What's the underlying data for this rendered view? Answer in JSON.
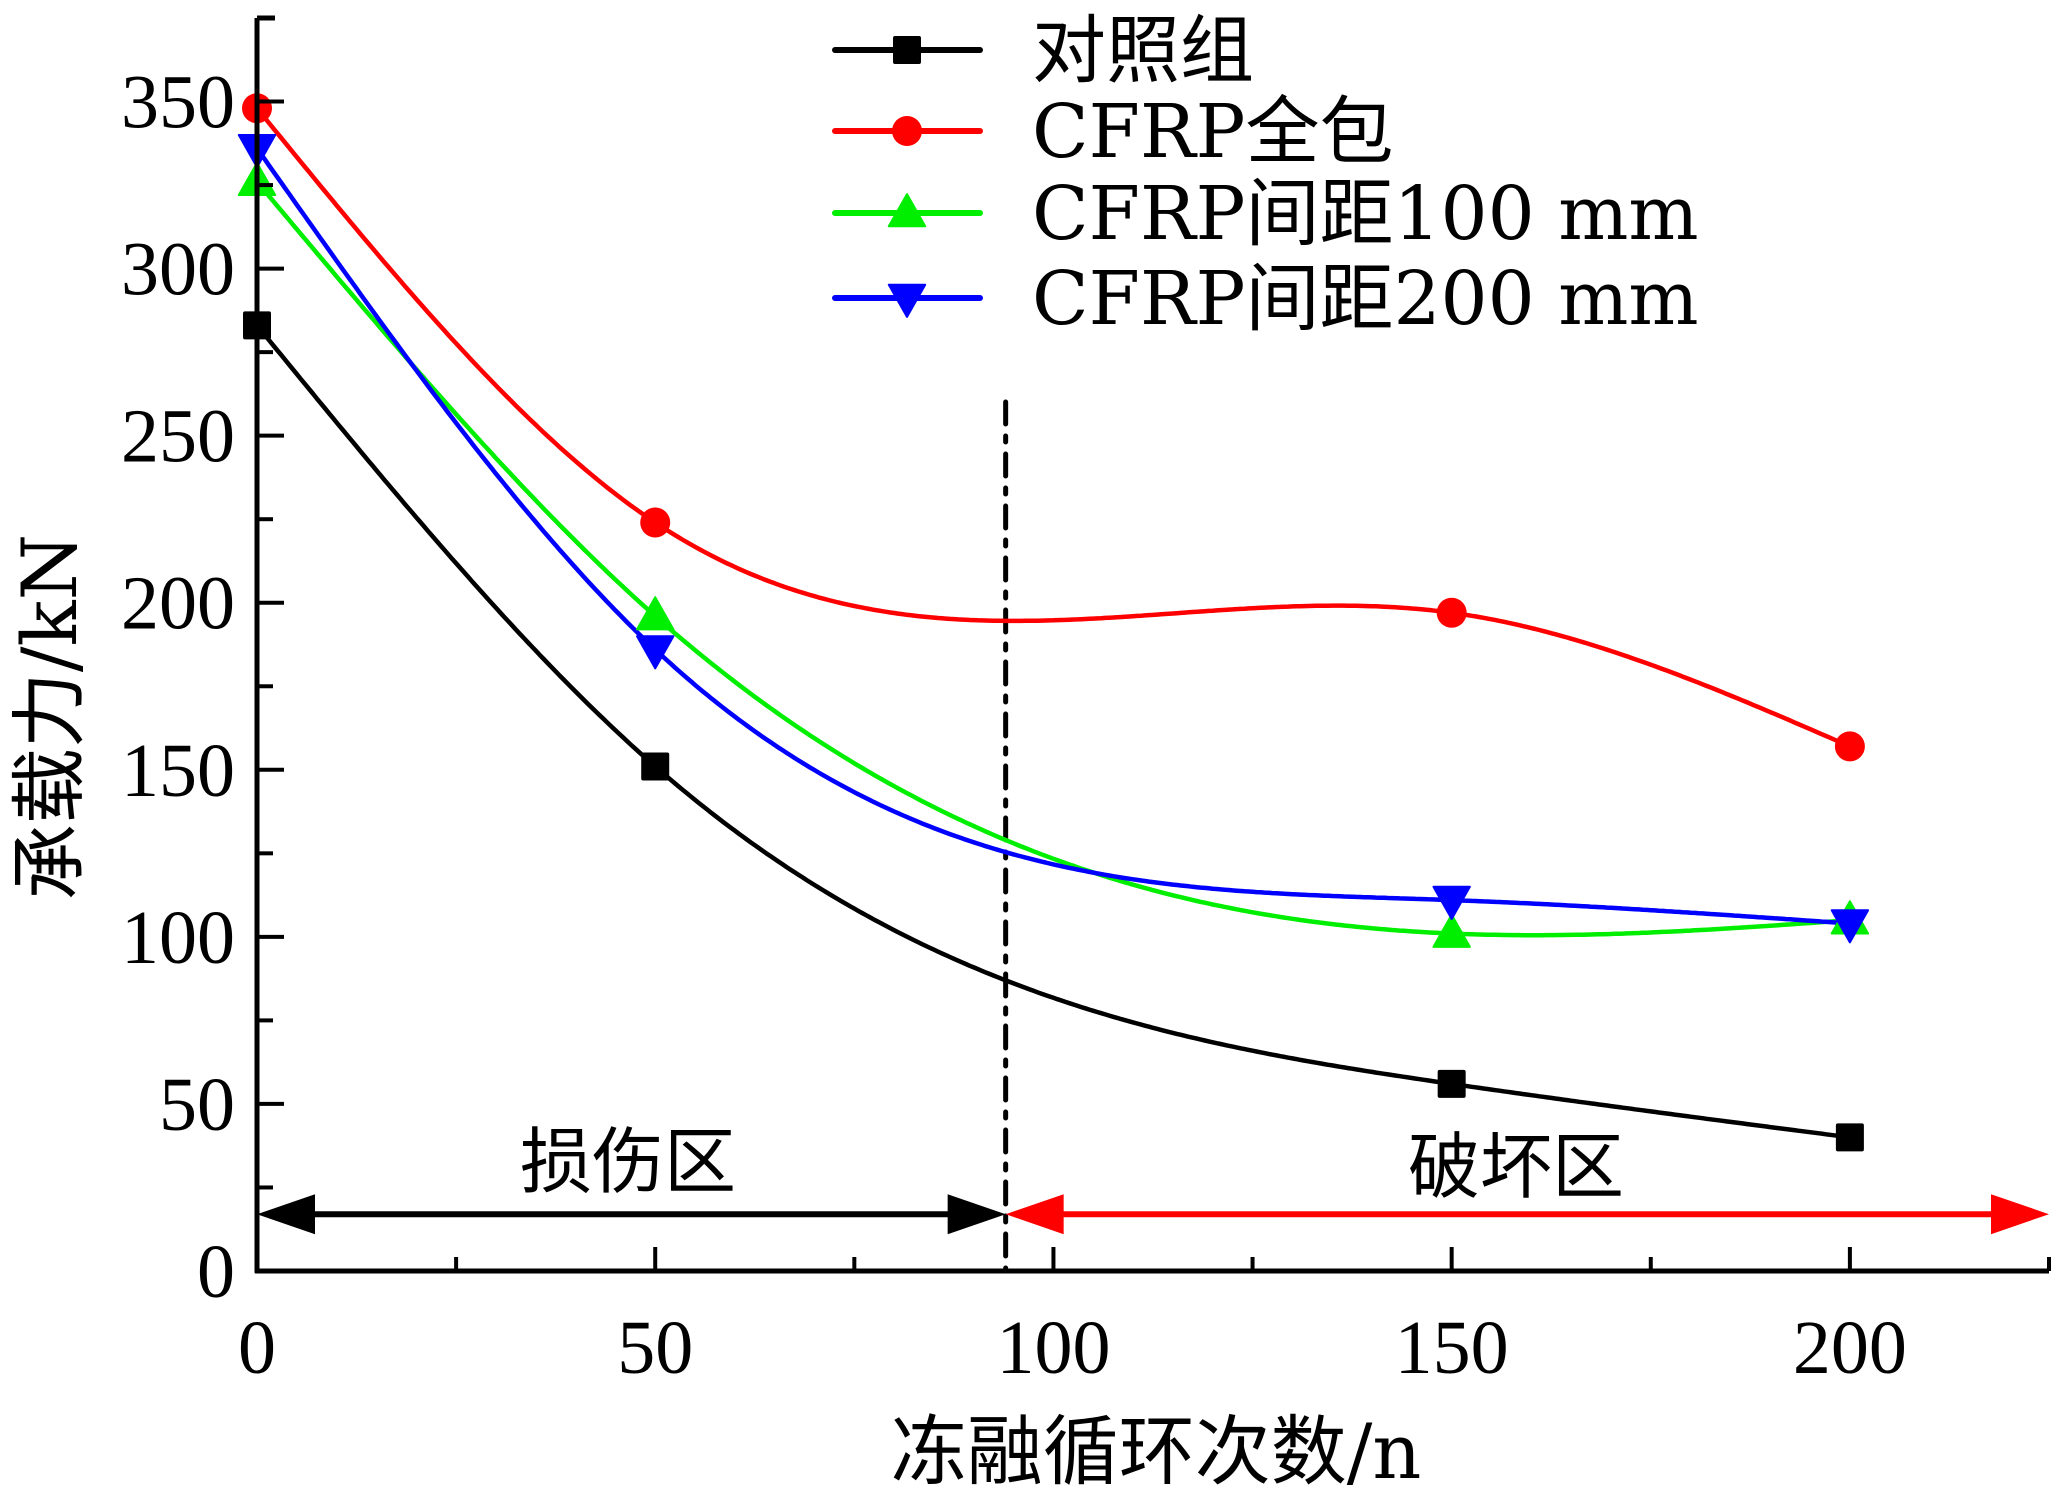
{
  "chart_data": {
    "type": "line",
    "title": "",
    "xlabel": "冻融循环次数/n",
    "ylabel": "承载力/kN",
    "xlim": [
      0,
      225
    ],
    "ylim": [
      0,
      375
    ],
    "x_ticks": [
      0,
      50,
      100,
      150,
      200
    ],
    "x_tick_labels": [
      "0",
      "50",
      "100",
      "150",
      "200"
    ],
    "x_minor_step": 25,
    "y_ticks": [
      0,
      50,
      100,
      150,
      200,
      250,
      300,
      350
    ],
    "y_tick_labels": [
      "0",
      "50",
      "100",
      "150",
      "200",
      "250",
      "300",
      "350"
    ],
    "y_minor_step": 25,
    "grid": false,
    "smooth": true,
    "legend_position": "top-center",
    "x": [
      0,
      50,
      150,
      200
    ],
    "series": [
      {
        "name": "对照组",
        "color": "#000000",
        "marker": "square",
        "values": [
          283,
          151,
          56,
          40
        ]
      },
      {
        "name": "CFRP全包",
        "color": "#ff0000",
        "marker": "circle",
        "values": [
          348,
          224,
          197,
          157
        ]
      },
      {
        "name": "CFRP间距100 mm",
        "color": "#00ee00",
        "marker": "triangle-up",
        "values": [
          326,
          196,
          101,
          105
        ]
      },
      {
        "name": "CFRP间距200 mm",
        "color": "#0000ff",
        "marker": "triangle-down",
        "values": [
          336,
          186,
          111,
          104
        ]
      }
    ],
    "annotations": {
      "divider_x": 94,
      "divider_style": "dash-dot",
      "arrow_y": 17,
      "regions": [
        {
          "label": "损伤区",
          "from": 0,
          "to": 94,
          "color": "#000000"
        },
        {
          "label": "破坏区",
          "from": 94,
          "to": 225,
          "color": "#ff0000"
        }
      ]
    }
  }
}
